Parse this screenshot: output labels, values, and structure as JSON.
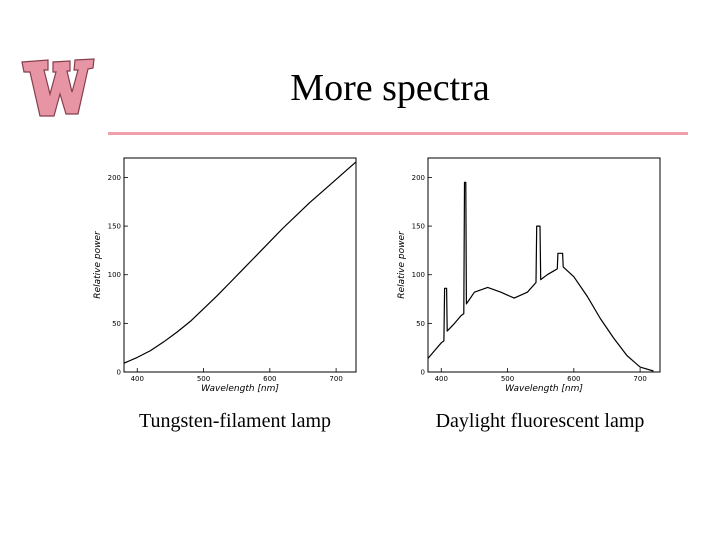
{
  "slide": {
    "title": "More spectra",
    "logo": {
      "icon": "wisconsin-w-logo",
      "color": "#e58a9c"
    },
    "rule_color": "#f0a0aa"
  },
  "chart_data": [
    {
      "type": "line",
      "caption": "Tungsten-filament lamp",
      "xlabel": "Wavelength [nm]",
      "ylabel": "Relative power",
      "xlim": [
        380,
        730
      ],
      "ylim": [
        0,
        220
      ],
      "xticks": [
        400,
        500,
        600,
        700
      ],
      "yticks": [
        0,
        50,
        100,
        150,
        200
      ],
      "series": [
        {
          "x": [
            380,
            400,
            420,
            440,
            460,
            480,
            500,
            520,
            540,
            560,
            580,
            600,
            620,
            640,
            660,
            680,
            700,
            720,
            730
          ],
          "y": [
            9,
            15,
            22,
            31,
            41,
            52,
            65,
            78,
            92,
            106,
            120,
            134,
            148,
            161,
            174,
            186,
            198,
            210,
            216
          ]
        }
      ]
    },
    {
      "type": "line",
      "caption": "Daylight fluorescent lamp",
      "xlabel": "Wavelength [nm]",
      "ylabel": "Relative power",
      "xlim": [
        380,
        730
      ],
      "ylim": [
        0,
        220
      ],
      "xticks": [
        400,
        500,
        600,
        700
      ],
      "yticks": [
        0,
        50,
        100,
        150,
        200
      ],
      "series": [
        {
          "x": [
            380,
            390,
            400,
            404,
            405,
            408,
            409,
            420,
            430,
            434,
            435,
            437,
            438,
            450,
            470,
            490,
            510,
            530,
            543,
            544,
            549,
            550,
            560,
            570,
            575,
            576,
            583,
            584,
            600,
            620,
            640,
            660,
            680,
            700,
            720
          ],
          "y": [
            14,
            22,
            30,
            32,
            86,
            86,
            42,
            50,
            58,
            60,
            195,
            195,
            70,
            82,
            87,
            82,
            76,
            82,
            92,
            150,
            150,
            95,
            100,
            104,
            106,
            122,
            122,
            108,
            98,
            78,
            55,
            35,
            17,
            5,
            1
          ]
        }
      ]
    }
  ]
}
